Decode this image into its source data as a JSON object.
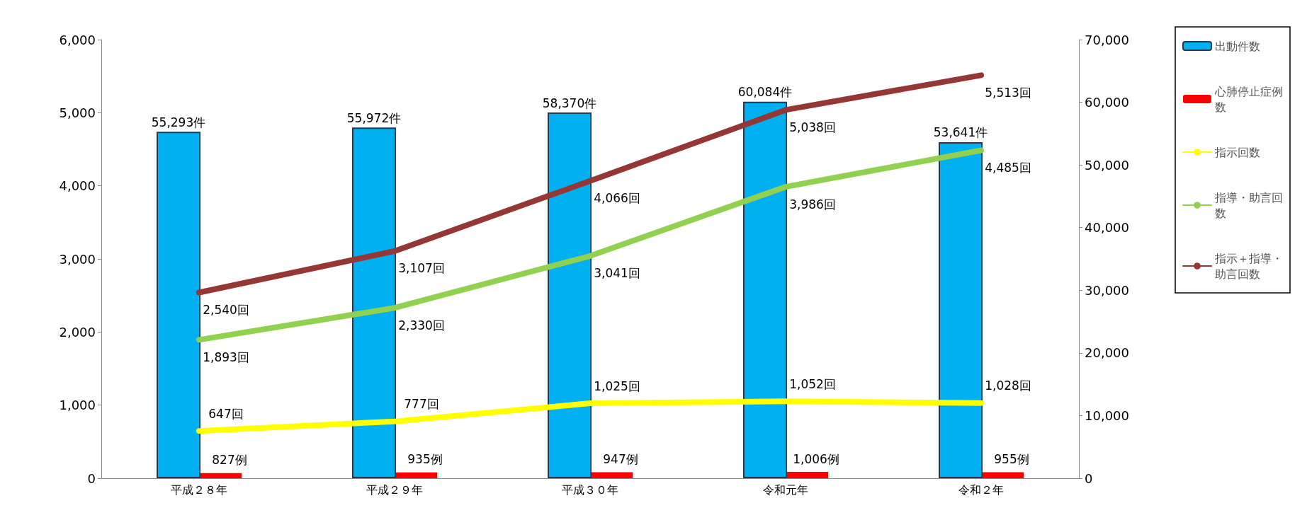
{
  "chart_data": {
    "type": "bar",
    "categories": [
      "平成２８年",
      "平成２９年",
      "平成３０年",
      "令和元年",
      "令和２年"
    ],
    "series": [
      {
        "name": "出動件数",
        "axis": "y2",
        "color": "#00b0f0",
        "values": [
          55293,
          55972,
          58370,
          60084,
          53641
        ],
        "value_labels": [
          "55,293件",
          "55,972件",
          "58,370件",
          "60,084件",
          "53,641件"
        ]
      },
      {
        "name": "心肺停止症例数",
        "axis": "y2",
        "color": "#ff0000",
        "values": [
          827,
          935,
          947,
          1006,
          955
        ],
        "value_labels": [
          "827例",
          "935例",
          "947例",
          "1,006例",
          "955例"
        ]
      },
      {
        "name": "指示回数",
        "type": "line",
        "color": "#ffff00",
        "values": [
          647,
          777,
          1025,
          1052,
          1028
        ],
        "value_labels": [
          "647回",
          "777回",
          "1,025回",
          "1,052回",
          "1,028回"
        ]
      },
      {
        "name": "指導・助言回数",
        "type": "line",
        "color": "#92d050",
        "values": [
          1893,
          2330,
          3041,
          3986,
          4485
        ],
        "value_labels": [
          "1,893回",
          "2,330回",
          "3,041回",
          "3,986回",
          "4,485回"
        ]
      },
      {
        "name": "指示＋指導・助言回数",
        "type": "line",
        "color": "#953735",
        "values": [
          2540,
          3107,
          4066,
          5038,
          5513
        ],
        "value_labels": [
          "2,540回",
          "3,107回",
          "4,066回",
          "5,038回",
          "5,513回"
        ]
      }
    ],
    "ylim": [
      0,
      6000
    ],
    "yticks": [
      0,
      {
        "value": 1000,
        "label": "1,000"
      },
      {
        "value": 2000,
        "label": "2,000"
      },
      {
        "value": 3000,
        "label": "3,000"
      },
      {
        "value": 4000,
        "label": "4,000"
      },
      {
        "value": 5000,
        "label": "5,000"
      },
      {
        "value": 6000,
        "label": "6,000"
      }
    ],
    "y2lim": [
      0,
      70000
    ],
    "y2ticks": [
      0,
      {
        "value": 10000,
        "label": "10,000"
      },
      {
        "value": 20000,
        "label": "20,000"
      },
      {
        "value": 30000,
        "label": "30,000"
      },
      {
        "value": 40000,
        "label": "40,000"
      },
      {
        "value": 50000,
        "label": "50,000"
      },
      {
        "value": 60000,
        "label": "60,000"
      },
      {
        "value": 70000,
        "label": "70,000"
      }
    ],
    "grid": false,
    "legend": "right",
    "marker": "none",
    "line_style": "solid"
  }
}
